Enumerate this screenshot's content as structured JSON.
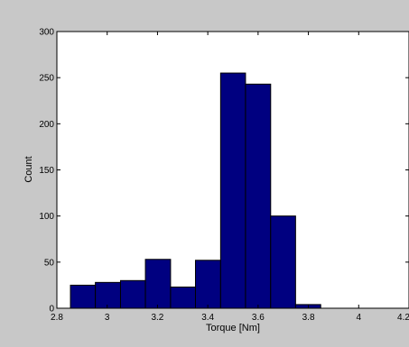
{
  "chart_data": {
    "type": "bar",
    "xlabel": "Torque [Nm]",
    "ylabel": "Count",
    "xlim": [
      2.8,
      4.2
    ],
    "ylim": [
      0,
      300
    ],
    "xticks": [
      "2.8",
      "3",
      "3.2",
      "3.4",
      "3.6",
      "3.8",
      "4",
      "4.2"
    ],
    "yticks": [
      "0",
      "50",
      "100",
      "150",
      "200",
      "250",
      "300"
    ],
    "grid": false,
    "bins": [
      {
        "start": 2.854,
        "end": 2.953,
        "count": 25
      },
      {
        "start": 2.953,
        "end": 3.053,
        "count": 28
      },
      {
        "start": 3.053,
        "end": 3.152,
        "count": 30
      },
      {
        "start": 3.152,
        "end": 3.252,
        "count": 53
      },
      {
        "start": 3.252,
        "end": 3.351,
        "count": 23
      },
      {
        "start": 3.351,
        "end": 3.451,
        "count": 52
      },
      {
        "start": 3.451,
        "end": 3.55,
        "count": 255
      },
      {
        "start": 3.55,
        "end": 3.65,
        "count": 243
      },
      {
        "start": 3.65,
        "end": 3.749,
        "count": 100
      },
      {
        "start": 3.749,
        "end": 3.849,
        "count": 4
      }
    ],
    "colors": {
      "bar_fill": "#000080",
      "bar_edge": "#000000",
      "plot_bg": "#ffffff",
      "figure_bg": "#c8c8c8"
    }
  }
}
